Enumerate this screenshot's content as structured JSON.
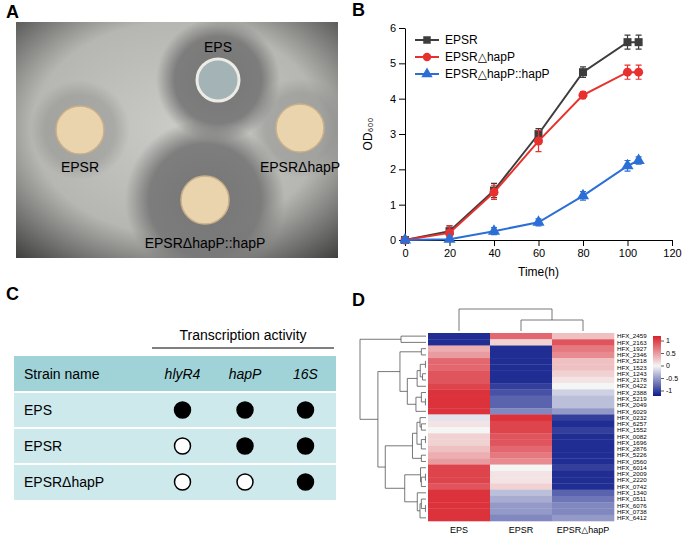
{
  "panel_letters": [
    "A",
    "B",
    "C",
    "D"
  ],
  "panel_a": {
    "labels": [
      "EPS",
      "EPSR",
      "EPSRΔhapP",
      "EPSRΔhapP::hapP"
    ]
  },
  "chart_data": [
    {
      "type": "line",
      "x": [
        0,
        20,
        40,
        60,
        80,
        100,
        105
      ],
      "xlabel": "Time(h)",
      "ylabel": "OD₆₀₀",
      "xlim": [
        0,
        120
      ],
      "xticks": [
        0,
        20,
        40,
        60,
        80,
        100,
        120
      ],
      "ylim": [
        0,
        6
      ],
      "yticks": [
        0,
        1,
        2,
        3,
        4,
        5,
        6
      ],
      "legend": "upper left",
      "series": [
        {
          "name": "EPSR",
          "color": "#3d3d3d",
          "marker": "square",
          "values": [
            0,
            0.25,
            1.4,
            3.0,
            4.75,
            5.6,
            5.6
          ],
          "errors": [
            0,
            0.15,
            0.2,
            0.15,
            0.15,
            0.2,
            0.2
          ]
        },
        {
          "name": "EPSR△hapP",
          "color": "#e8312f",
          "marker": "circle",
          "values": [
            0,
            0.2,
            1.35,
            2.8,
            4.1,
            4.75,
            4.75
          ],
          "errors": [
            0,
            0.2,
            0.2,
            0.3,
            0.1,
            0.2,
            0.2
          ]
        },
        {
          "name": "EPSR△hapP::hapP",
          "color": "#2b6fd6",
          "marker": "triangle",
          "values": [
            0,
            0.02,
            0.25,
            0.5,
            1.25,
            2.1,
            2.25
          ],
          "errors": [
            0,
            0.05,
            0.1,
            0.1,
            0.12,
            0.15,
            0.1
          ]
        }
      ]
    },
    {
      "type": "heatmap",
      "columns": [
        "EPS",
        "EPSR",
        "EPSR△hapP"
      ],
      "rows": [
        "HFX_2459",
        "HFX_2163",
        "HFX_1927",
        "HFX_2346",
        "HFX_5218",
        "HFX_1523",
        "HFX_1243",
        "HFX_2178",
        "HFX_0422",
        "HFX_2388",
        "HFX_5219",
        "HFX_2049",
        "HFX_6029",
        "HFX_0232",
        "HFX_6257",
        "HFX_1552",
        "HFX_0082",
        "HFX_1696",
        "HFX_2876",
        "HFX_5226",
        "HFX_0560",
        "HFX_6014",
        "HFX_2009",
        "HFX_2220",
        "HFX_0742",
        "HFX_1340",
        "HFX_0511",
        "HFX_6076",
        "HFX_0738",
        "HFX_6412"
      ],
      "cells": [
        [
          -1.1,
          0.8,
          0.3
        ],
        [
          -1.1,
          0.2,
          0.9
        ],
        [
          0.4,
          -1.1,
          0.7
        ],
        [
          0.5,
          -1.1,
          0.6
        ],
        [
          0.8,
          -1.1,
          0.3
        ],
        [
          0.8,
          -1.1,
          0.3
        ],
        [
          0.9,
          -1.1,
          0.2
        ],
        [
          0.9,
          -1.1,
          0.1
        ],
        [
          1.0,
          -1.0,
          0.0
        ],
        [
          1.1,
          -0.9,
          -0.2
        ],
        [
          1.1,
          -0.8,
          -0.3
        ],
        [
          1.1,
          -0.8,
          -0.3
        ],
        [
          1.1,
          -0.6,
          -0.5
        ],
        [
          -0.1,
          1.1,
          -1.0
        ],
        [
          0.1,
          1.0,
          -1.1
        ],
        [
          0.0,
          1.0,
          -1.0
        ],
        [
          0.2,
          0.9,
          -1.1
        ],
        [
          0.2,
          0.9,
          -1.1
        ],
        [
          0.3,
          0.8,
          -1.1
        ],
        [
          0.4,
          0.7,
          -1.1
        ],
        [
          0.5,
          0.6,
          -1.1
        ],
        [
          1.0,
          0.0,
          -1.0
        ],
        [
          1.0,
          0.1,
          -1.1
        ],
        [
          1.0,
          0.1,
          -1.1
        ],
        [
          0.9,
          0.2,
          -1.1
        ],
        [
          1.1,
          -0.3,
          -0.8
        ],
        [
          1.1,
          -0.4,
          -0.7
        ],
        [
          1.1,
          -0.5,
          -0.6
        ],
        [
          1.1,
          -0.5,
          -0.6
        ],
        [
          1.1,
          -0.6,
          -0.5
        ]
      ],
      "color_range": [
        -1.2,
        1.2
      ],
      "color_ticks": [
        1,
        0.5,
        0,
        -0.5,
        -1
      ]
    }
  ],
  "panel_c": {
    "header": "Transcription activity",
    "columns": [
      "Strain name",
      "hlyR4",
      "hapP",
      "16S"
    ],
    "rows": [
      {
        "name": "EPS",
        "activity": [
          true,
          true,
          true
        ]
      },
      {
        "name": "EPSR",
        "activity": [
          false,
          true,
          true
        ]
      },
      {
        "name": "EPSRΔhapP",
        "activity": [
          false,
          false,
          true
        ]
      }
    ]
  }
}
